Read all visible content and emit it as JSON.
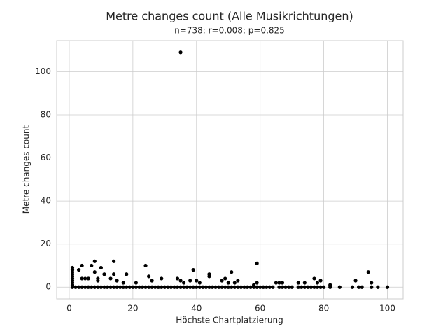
{
  "chart_data": {
    "type": "scatter",
    "title": "Metre changes count (Alle Musikrichtungen)",
    "subtitle": "n=738; r=0.008; p=0.825",
    "x_label": "Höchste Chartplatzierung",
    "y_label": "Metre changes count",
    "color": "#000000",
    "grid": true,
    "xlim": [
      -3.95,
      104.95
    ],
    "ylim": [
      -5.45,
      114.45
    ],
    "xticks": [
      0,
      20,
      40,
      60,
      80,
      100
    ],
    "yticks": [
      0,
      20,
      40,
      60,
      80,
      100
    ],
    "x": [
      35,
      59,
      8,
      14,
      24,
      4,
      7,
      10,
      1,
      1,
      1,
      1,
      1,
      1,
      1,
      1,
      1,
      3,
      8,
      39,
      44,
      44,
      51,
      94,
      18,
      14,
      11,
      5,
      4,
      6,
      9,
      9,
      13,
      15,
      17,
      21,
      25,
      26,
      29,
      34,
      35,
      36,
      38,
      40,
      41,
      48,
      49,
      50,
      52,
      53,
      58,
      59,
      65,
      66,
      67,
      72,
      74,
      77,
      78,
      79,
      82,
      90,
      95,
      1,
      2,
      3,
      4,
      5,
      6,
      7,
      8,
      9,
      10,
      11,
      12,
      13,
      14,
      15,
      16,
      17,
      18,
      19,
      20,
      21,
      22,
      23,
      24,
      25,
      26,
      27,
      28,
      29,
      30,
      31,
      32,
      33,
      34,
      35,
      36,
      37,
      38,
      39,
      40,
      41,
      42,
      43,
      44,
      45,
      46,
      47,
      48,
      49,
      50,
      51,
      52,
      53,
      54,
      55,
      56,
      57,
      58,
      59,
      60,
      61,
      62,
      63,
      64,
      66,
      67,
      68,
      69,
      70,
      72,
      73,
      74,
      75,
      76,
      77,
      78,
      79,
      80,
      82,
      85,
      89,
      91,
      92,
      95,
      97,
      100
    ],
    "values": [
      109,
      11,
      12,
      12,
      10,
      10,
      10,
      9,
      9,
      8,
      7,
      6,
      5,
      4,
      3,
      2,
      1,
      8,
      7,
      8,
      6,
      5,
      7,
      7,
      6,
      6,
      6,
      4,
      4,
      4,
      4,
      3,
      4,
      3,
      2,
      2,
      5,
      3,
      4,
      4,
      3,
      2,
      3,
      3,
      2,
      3,
      4,
      2,
      2,
      3,
      1,
      2,
      2,
      2,
      2,
      2,
      2,
      4,
      2,
      3,
      1,
      3,
      2,
      0,
      0,
      0,
      0,
      0,
      0,
      0,
      0,
      0,
      0,
      0,
      0,
      0,
      0,
      0,
      0,
      0,
      0,
      0,
      0,
      0,
      0,
      0,
      0,
      0,
      0,
      0,
      0,
      0,
      0,
      0,
      0,
      0,
      0,
      0,
      0,
      0,
      0,
      0,
      0,
      0,
      0,
      0,
      0,
      0,
      0,
      0,
      0,
      0,
      0,
      0,
      0,
      0,
      0,
      0,
      0,
      0,
      0,
      0,
      0,
      0,
      0,
      0,
      0,
      0,
      0,
      0,
      0,
      0,
      0,
      0,
      0,
      0,
      0,
      0,
      0,
      0,
      0,
      0,
      0,
      0,
      0,
      0,
      0,
      0,
      0
    ]
  }
}
